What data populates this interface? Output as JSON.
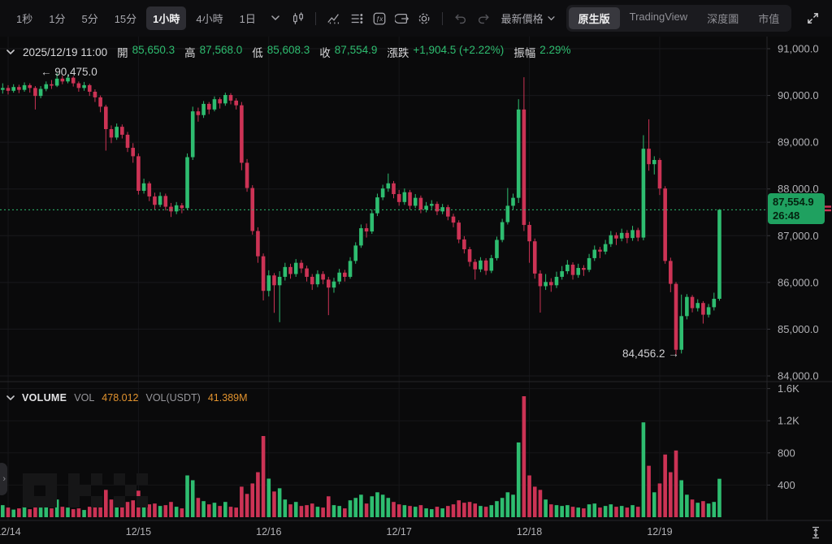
{
  "toolbar": {
    "timeframes": [
      {
        "label": "1秒"
      },
      {
        "label": "1分"
      },
      {
        "label": "5分"
      },
      {
        "label": "15分"
      },
      {
        "label": "1小時"
      },
      {
        "label": "4小時"
      },
      {
        "label": "1日"
      }
    ],
    "latest_price_label": "最新價格",
    "view_tabs": [
      {
        "label": "原生版"
      },
      {
        "label": "TradingView"
      },
      {
        "label": "深度圖"
      },
      {
        "label": "市值"
      }
    ]
  },
  "ohlc_bar": {
    "datetime": "2025/12/19 11:00",
    "open_label": "開",
    "open": "85,650.3",
    "high_label": "高",
    "high": "87,568.0",
    "low_label": "低",
    "low": "85,608.3",
    "close_label": "收",
    "close": "87,554.9",
    "change_label": "漲跌",
    "change": "+1,904.5 (+2.22%)",
    "amplitude_label": "振幅",
    "amplitude": "2.29%"
  },
  "markers": {
    "high": "← 90,475.0",
    "low": "84,456.2 →"
  },
  "price_tag": {
    "price": "87,554.9",
    "countdown": "26:48"
  },
  "volume_header": {
    "title": "VOLUME",
    "vol_label": "VOL",
    "vol_value": "478.012",
    "vol_usdt_label": "VOL(USDT)",
    "vol_usdt_value": "41.389M"
  },
  "colors": {
    "up": "#2EBD70",
    "down": "#CC3355",
    "price_label_bg": "#1FA160",
    "orange": "#E2932E"
  },
  "chart_data": {
    "type": "candlestick",
    "interval": "1小時",
    "current_price": 87554.9,
    "high_marker": 90475.0,
    "low_marker": 84456.2,
    "price_axis_range": [
      84000,
      91000
    ],
    "volume_axis_range": [
      0,
      1600
    ],
    "price_ticks": [
      {
        "label": "91,000.0",
        "price": 91000
      },
      {
        "label": "90,000.0",
        "price": 90000
      },
      {
        "label": "89,000.0",
        "price": 89000
      },
      {
        "label": "88,000.0",
        "price": 88000
      },
      {
        "label": "87,000.0",
        "price": 87000
      },
      {
        "label": "86,000.0",
        "price": 86000
      },
      {
        "label": "85,000.0",
        "price": 85000
      },
      {
        "label": "84,000.0",
        "price": 84000
      }
    ],
    "volume_ticks": [
      {
        "label": "1.6K",
        "v": 1600
      },
      {
        "label": "1.2K",
        "v": 1200
      },
      {
        "label": "800",
        "v": 800
      },
      {
        "label": "400",
        "v": 400
      }
    ],
    "time_ticks": [
      {
        "label": "12/14",
        "i": 1
      },
      {
        "label": "12/15",
        "i": 25
      },
      {
        "label": "12/16",
        "i": 49
      },
      {
        "label": "12/17",
        "i": 73
      },
      {
        "label": "12/18",
        "i": 97
      },
      {
        "label": "12/19",
        "i": 121
      }
    ],
    "candles": [
      [
        90120,
        90260,
        90040,
        90160,
        150
      ],
      [
        90160,
        90220,
        90020,
        90100,
        120
      ],
      [
        90100,
        90240,
        90060,
        90180,
        95
      ],
      [
        90180,
        90230,
        90050,
        90120,
        110
      ],
      [
        90120,
        90280,
        90080,
        90220,
        130
      ],
      [
        90220,
        90260,
        90060,
        90160,
        100
      ],
      [
        90160,
        90200,
        89700,
        89990,
        180
      ],
      [
        89990,
        90200,
        89940,
        90140,
        120
      ],
      [
        90140,
        90300,
        90090,
        90240,
        140
      ],
      [
        90240,
        90330,
        90140,
        90210,
        110
      ],
      [
        90210,
        90475,
        90180,
        90360,
        220
      ],
      [
        90360,
        90420,
        90240,
        90300,
        130
      ],
      [
        90300,
        90440,
        90260,
        90380,
        120
      ],
      [
        90380,
        90410,
        90190,
        90260,
        100
      ],
      [
        90260,
        90300,
        90080,
        90160,
        110
      ],
      [
        90160,
        90290,
        90100,
        90220,
        90
      ],
      [
        90220,
        90250,
        89990,
        90080,
        130
      ],
      [
        90080,
        90130,
        89860,
        89960,
        150
      ],
      [
        89960,
        90000,
        89640,
        89760,
        170
      ],
      [
        89760,
        89800,
        88820,
        89280,
        340
      ],
      [
        89280,
        89360,
        88980,
        89100,
        220
      ],
      [
        89100,
        89400,
        89050,
        89330,
        160
      ],
      [
        89330,
        89380,
        89080,
        89160,
        140
      ],
      [
        89160,
        89220,
        88790,
        88880,
        190
      ],
      [
        88880,
        88980,
        88560,
        88700,
        210
      ],
      [
        88700,
        88760,
        87880,
        87960,
        330
      ],
      [
        87960,
        88220,
        87900,
        88120,
        180
      ],
      [
        88120,
        88160,
        87740,
        87840,
        160
      ],
      [
        87840,
        87920,
        87560,
        87660,
        170
      ],
      [
        87660,
        87930,
        87610,
        87850,
        140
      ],
      [
        87850,
        87900,
        87540,
        87620,
        150
      ],
      [
        87620,
        87700,
        87400,
        87520,
        190
      ],
      [
        87520,
        87720,
        87460,
        87650,
        130
      ],
      [
        87650,
        87700,
        87480,
        87590,
        110
      ],
      [
        87590,
        88760,
        87560,
        88680,
        520
      ],
      [
        88680,
        89760,
        88620,
        89660,
        460
      ],
      [
        89660,
        89740,
        89440,
        89580,
        240
      ],
      [
        89580,
        89880,
        89520,
        89820,
        200
      ],
      [
        89820,
        89860,
        89600,
        89700,
        160
      ],
      [
        89700,
        89980,
        89660,
        89920,
        180
      ],
      [
        89920,
        89960,
        89720,
        89830,
        140
      ],
      [
        89830,
        90060,
        89780,
        90010,
        190
      ],
      [
        90010,
        90050,
        89810,
        89890,
        130
      ],
      [
        89890,
        89940,
        89700,
        89790,
        120
      ],
      [
        89790,
        89860,
        88400,
        88560,
        380
      ],
      [
        88560,
        88640,
        87940,
        88020,
        290
      ],
      [
        88020,
        88080,
        87020,
        87100,
        420
      ],
      [
        87100,
        87180,
        86420,
        86560,
        560
      ],
      [
        86560,
        86620,
        85615,
        85820,
        1010
      ],
      [
        85820,
        86260,
        85700,
        86150,
        480
      ],
      [
        86150,
        86200,
        85350,
        85940,
        320
      ],
      [
        85940,
        86240,
        85150,
        86120,
        360
      ],
      [
        86120,
        86420,
        86040,
        86330,
        220
      ],
      [
        86330,
        86400,
        86080,
        86180,
        160
      ],
      [
        86180,
        86500,
        86120,
        86420,
        190
      ],
      [
        86420,
        86480,
        86200,
        86300,
        140
      ],
      [
        86300,
        86360,
        86020,
        86120,
        150
      ],
      [
        86120,
        86180,
        85840,
        85960,
        170
      ],
      [
        85960,
        86260,
        85900,
        86180,
        130
      ],
      [
        86180,
        86240,
        85960,
        86060,
        120
      ],
      [
        86060,
        86120,
        85300,
        85890,
        260
      ],
      [
        85890,
        86100,
        85780,
        86020,
        150
      ],
      [
        86020,
        86290,
        85960,
        86210,
        140
      ],
      [
        86210,
        86270,
        86020,
        86120,
        110
      ],
      [
        86120,
        86540,
        86080,
        86460,
        210
      ],
      [
        86460,
        86860,
        86400,
        86790,
        240
      ],
      [
        86790,
        87240,
        86740,
        87160,
        280
      ],
      [
        87160,
        87260,
        86960,
        87090,
        170
      ],
      [
        87090,
        87560,
        87040,
        87480,
        260
      ],
      [
        87480,
        87900,
        87420,
        87820,
        310
      ],
      [
        87820,
        88090,
        87760,
        88010,
        280
      ],
      [
        88010,
        88330,
        87940,
        88120,
        240
      ],
      [
        88120,
        88170,
        87800,
        87890,
        190
      ],
      [
        87890,
        87980,
        87640,
        87720,
        160
      ],
      [
        87720,
        88010,
        87660,
        87930,
        150
      ],
      [
        87930,
        87980,
        87560,
        87640,
        140
      ],
      [
        87640,
        87890,
        87590,
        87810,
        130
      ],
      [
        87810,
        87860,
        87480,
        87560,
        150
      ],
      [
        87560,
        87720,
        87500,
        87640,
        110
      ],
      [
        87640,
        87760,
        87570,
        87680,
        100
      ],
      [
        87680,
        87730,
        87440,
        87520,
        130
      ],
      [
        87520,
        87680,
        87460,
        87610,
        110
      ],
      [
        87610,
        87660,
        87330,
        87410,
        140
      ],
      [
        87410,
        87470,
        87180,
        87280,
        160
      ],
      [
        87280,
        87330,
        86840,
        86920,
        210
      ],
      [
        86920,
        86990,
        86620,
        86710,
        180
      ],
      [
        86710,
        86760,
        86340,
        86440,
        190
      ],
      [
        86440,
        86500,
        86060,
        86280,
        170
      ],
      [
        86280,
        86540,
        86220,
        86470,
        140
      ],
      [
        86470,
        86520,
        86160,
        86250,
        130
      ],
      [
        86250,
        86590,
        86200,
        86520,
        150
      ],
      [
        86520,
        86980,
        86470,
        86910,
        200
      ],
      [
        86910,
        87360,
        86860,
        87290,
        240
      ],
      [
        87290,
        88020,
        87240,
        87640,
        310
      ],
      [
        87640,
        87900,
        87560,
        87810,
        280
      ],
      [
        87810,
        89920,
        87700,
        89700,
        930
      ],
      [
        89700,
        90390,
        87100,
        87230,
        1505
      ],
      [
        87230,
        87300,
        86420,
        86880,
        520
      ],
      [
        86880,
        86940,
        86080,
        86190,
        380
      ],
      [
        86190,
        86260,
        85355,
        85920,
        340
      ],
      [
        85920,
        86180,
        85840,
        86010,
        220
      ],
      [
        86010,
        86090,
        85800,
        85940,
        160
      ],
      [
        85940,
        86230,
        85880,
        86120,
        150
      ],
      [
        86120,
        86350,
        86060,
        86240,
        140
      ],
      [
        86240,
        86480,
        86180,
        86380,
        150
      ],
      [
        86380,
        86430,
        86060,
        86160,
        130
      ],
      [
        86160,
        86400,
        86100,
        86310,
        120
      ],
      [
        86310,
        86370,
        86140,
        86270,
        110
      ],
      [
        86270,
        86610,
        86220,
        86520,
        160
      ],
      [
        86520,
        86790,
        86460,
        86700,
        170
      ],
      [
        86700,
        86760,
        86520,
        86660,
        120
      ],
      [
        86660,
        86910,
        86600,
        86820,
        140
      ],
      [
        86820,
        87100,
        86760,
        87010,
        160
      ],
      [
        87010,
        87070,
        86800,
        86940,
        130
      ],
      [
        86940,
        87150,
        86880,
        87060,
        140
      ],
      [
        87060,
        87120,
        86840,
        86950,
        120
      ],
      [
        86950,
        87210,
        86890,
        87120,
        150
      ],
      [
        87120,
        87170,
        86880,
        86960,
        130
      ],
      [
        86960,
        89150,
        86900,
        88860,
        1180
      ],
      [
        88860,
        89490,
        88390,
        88530,
        640
      ],
      [
        88530,
        88700,
        88310,
        88620,
        310
      ],
      [
        88620,
        88660,
        87870,
        88010,
        420
      ],
      [
        88010,
        88060,
        86400,
        86460,
        780
      ],
      [
        86460,
        86530,
        85790,
        85970,
        560
      ],
      [
        85970,
        86010,
        84456.2,
        84560,
        830
      ],
      [
        84560,
        85740,
        84480,
        85280,
        460
      ],
      [
        85280,
        85750,
        85210,
        85690,
        280
      ],
      [
        85690,
        85730,
        85360,
        85450,
        220
      ],
      [
        85450,
        85640,
        85380,
        85560,
        180
      ],
      [
        85560,
        85600,
        85120,
        85310,
        200
      ],
      [
        85310,
        85540,
        85250,
        85470,
        170
      ],
      [
        85470,
        85780,
        85400,
        85650,
        190
      ],
      [
        85650.3,
        87568.0,
        85608.3,
        87554.9,
        478
      ]
    ]
  }
}
